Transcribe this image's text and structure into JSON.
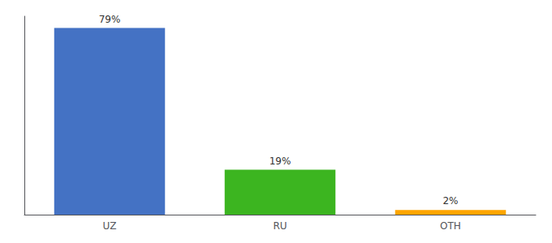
{
  "chart_data": {
    "type": "bar",
    "categories": [
      "UZ",
      "RU",
      "OTH"
    ],
    "values": [
      79,
      19,
      2
    ],
    "value_labels": [
      "79%",
      "19%",
      "2%"
    ],
    "colors": [
      "#4472C4",
      "#3CB520",
      "#FFA500"
    ],
    "ylim": [
      0,
      84
    ],
    "grid": false,
    "data_labels": true,
    "tick_labels": "x"
  }
}
